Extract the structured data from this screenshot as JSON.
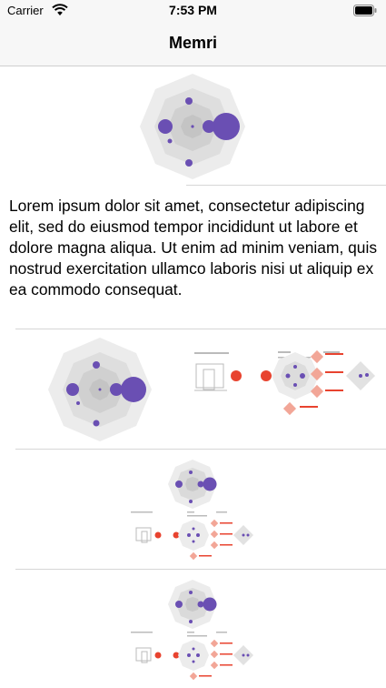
{
  "status_bar": {
    "carrier": "Carrier",
    "time": "7:53 PM",
    "icons": [
      "wifi-icon",
      "battery-icon"
    ]
  },
  "nav": {
    "title": "Memri"
  },
  "text_cell": {
    "body": "Lorem ipsum dolor sit amet, consectetur adipiscing elit, sed do eiusmod tempor incididunt ut labore et dolore magna aliqua. Ut enim ad minim veniam, quis nostrud exercitation ullamco laboris nisi ut aliquip ex ea commodo consequat."
  },
  "colors": {
    "accent_purple": "#6a4fb3",
    "accent_red": "#e8432f",
    "diagram_gray": "#e7e7e7",
    "separator": "#d6d6d6"
  }
}
